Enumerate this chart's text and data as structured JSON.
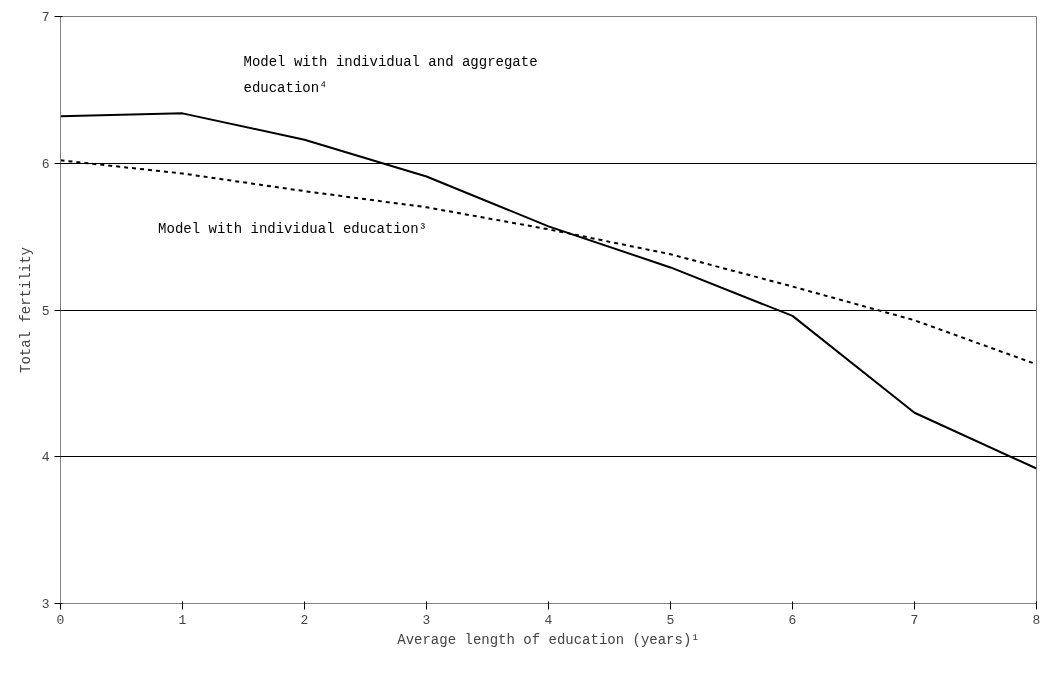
{
  "chart_data": {
    "type": "line",
    "xlabel": "Average length of education (years)¹",
    "ylabel": "Total fertility",
    "x": [
      0,
      1,
      2,
      3,
      4,
      5,
      6,
      7,
      8
    ],
    "series": [
      {
        "name": "Model with individual and aggregate education⁴",
        "color": "#000000",
        "line_style": "solid",
        "values": [
          6.32,
          6.34,
          6.16,
          5.91,
          5.57,
          5.29,
          4.96,
          4.3,
          3.92
        ]
      },
      {
        "name": "Model with individual education³",
        "color": "#000000",
        "line_style": "dashed",
        "values": [
          6.02,
          5.93,
          5.81,
          5.7,
          5.55,
          5.38,
          5.16,
          4.93,
          4.63
        ]
      }
    ],
    "xlim": [
      0,
      8
    ],
    "ylim": [
      3,
      7
    ],
    "xticks": [
      0,
      1,
      2,
      3,
      4,
      5,
      6,
      7,
      8
    ],
    "yticks": [
      3,
      4,
      5,
      6,
      7
    ],
    "grid": "y",
    "marker": "none"
  }
}
